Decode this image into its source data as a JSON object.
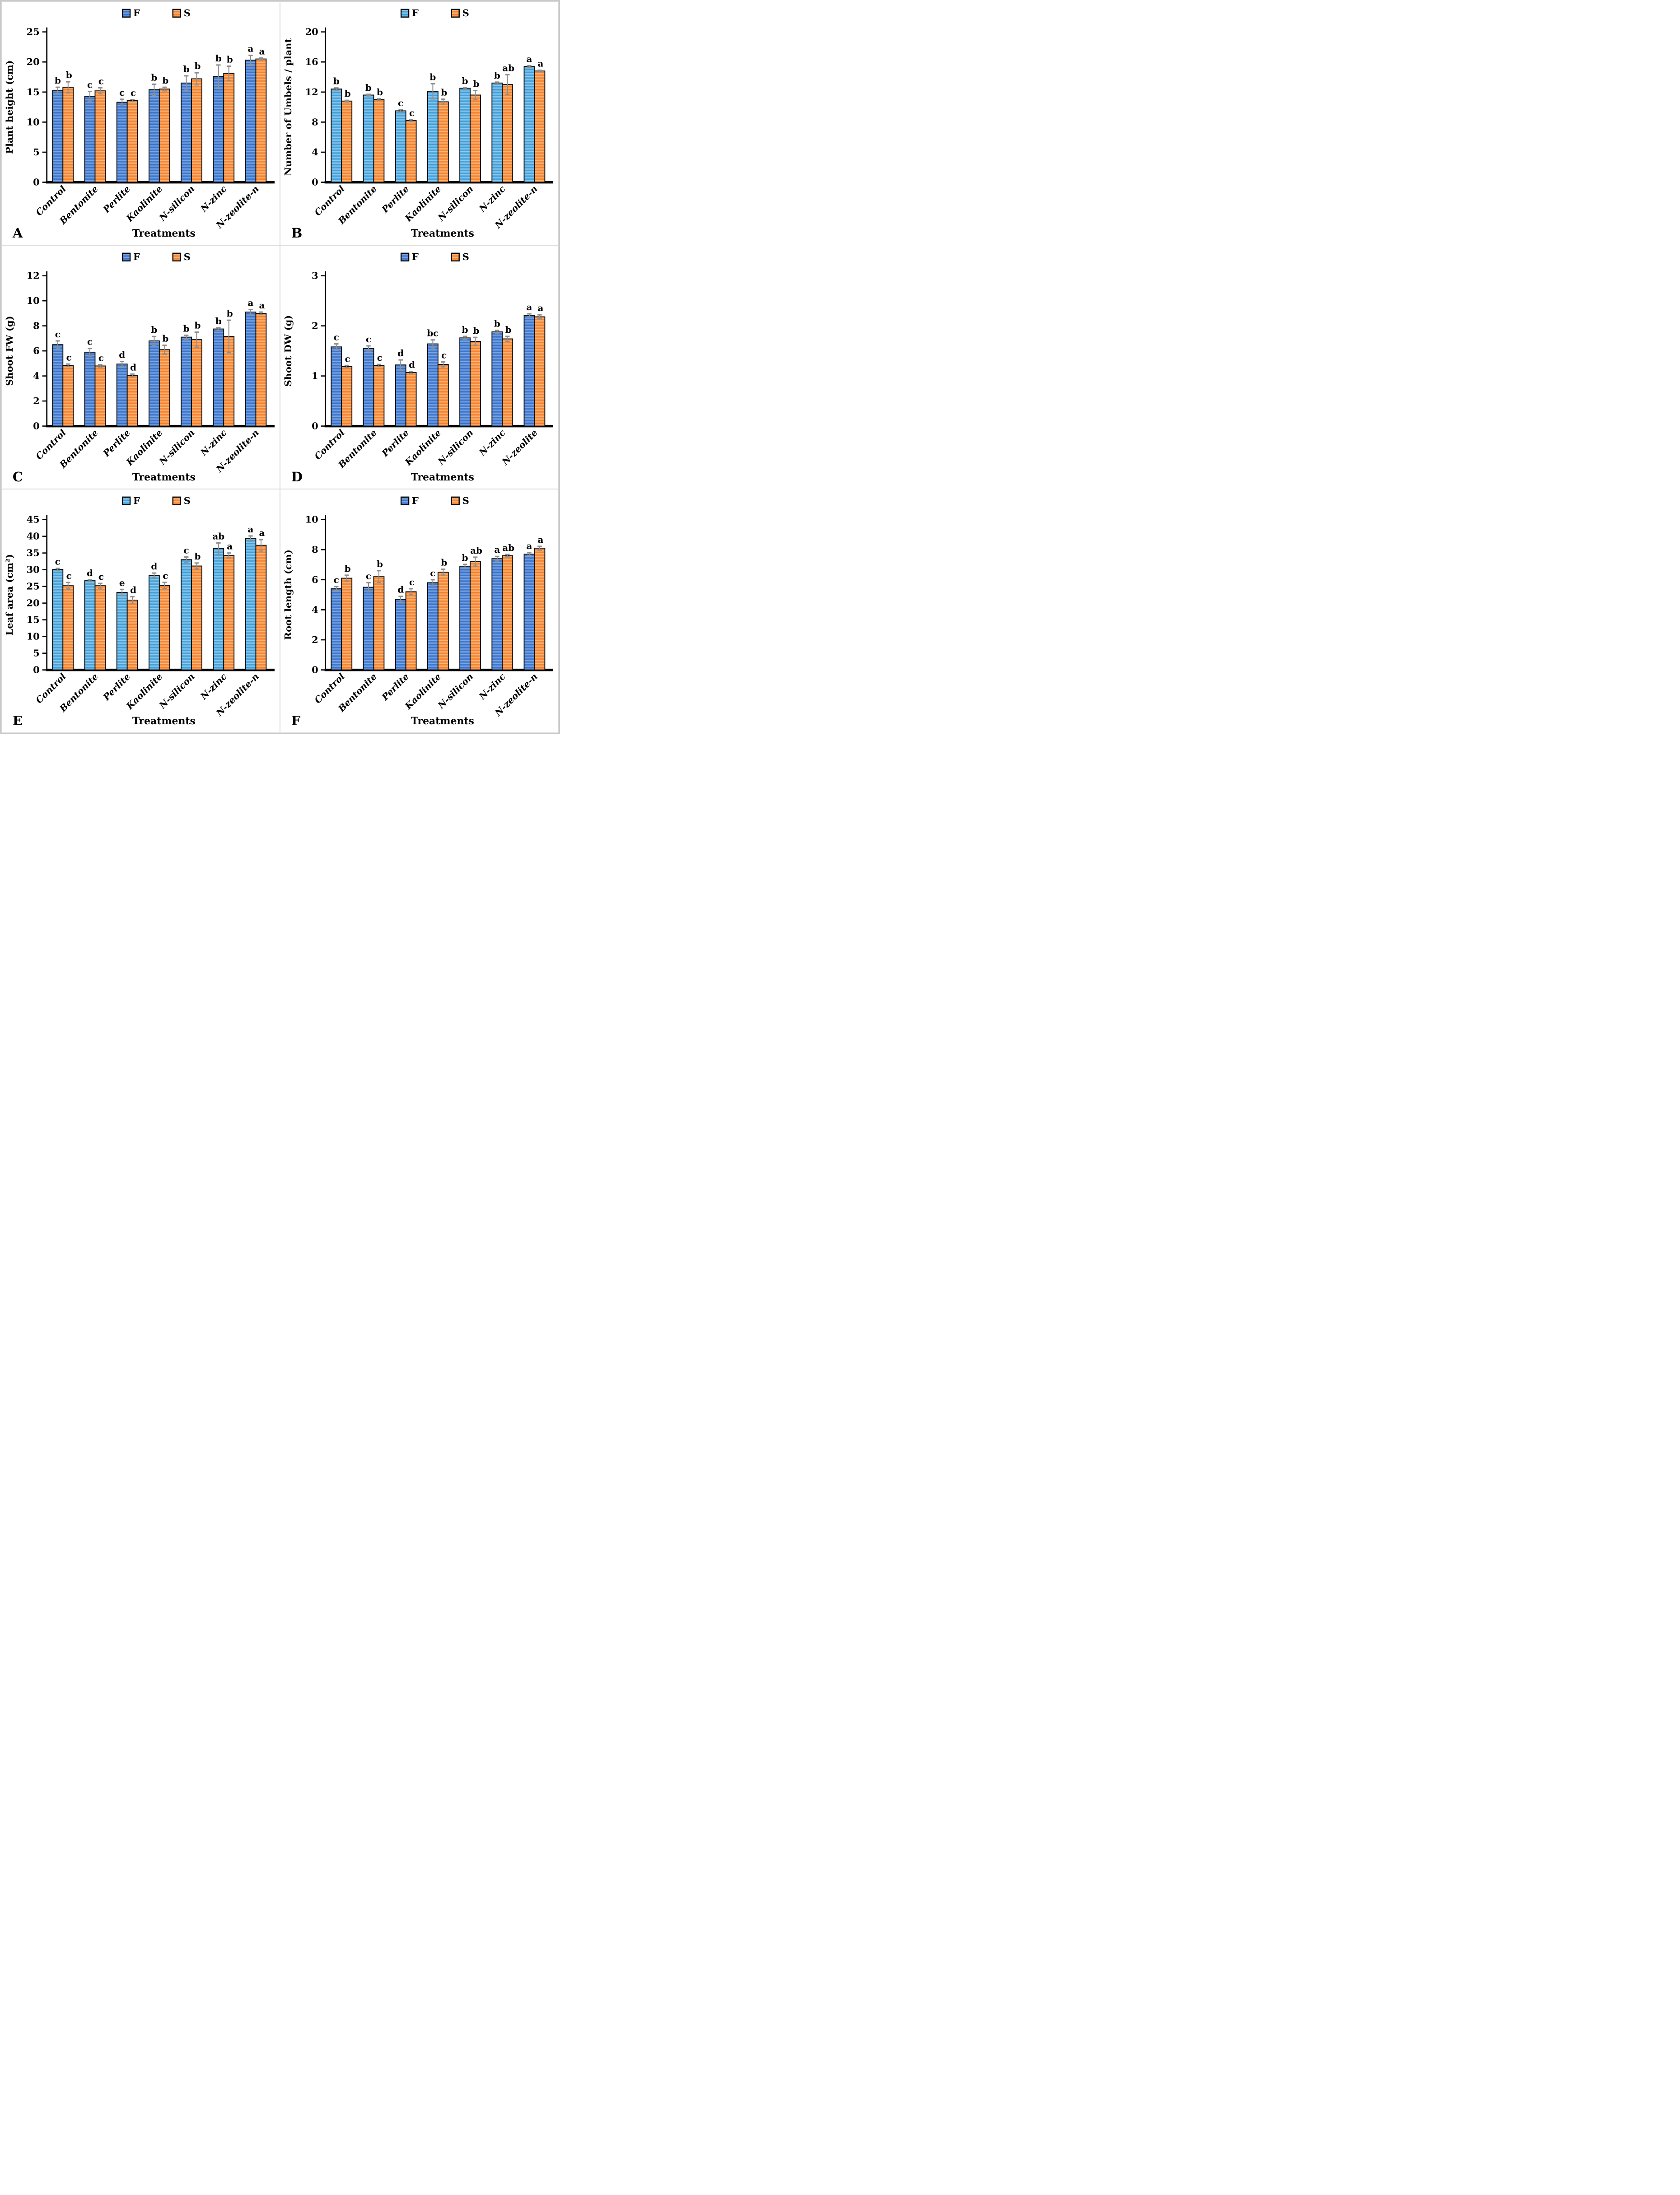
{
  "figure": {
    "xlabel": "Treatments",
    "legend_labels": [
      "F",
      "S"
    ],
    "panel_letters": [
      "A",
      "B",
      "C",
      "D",
      "E",
      "F"
    ],
    "colors": {
      "blue_medium_base": "#3a74cf",
      "blue_medium_stripe": "#86acdf",
      "blue_light_base": "#41a0da",
      "blue_light_stripe": "#9bcfee",
      "orange_base": "#f5822d",
      "orange_stripe": "#fcbc85",
      "bar_border": "#0d0d0d",
      "error_bar": "#8f8f8f",
      "axis": "#000000",
      "panel_border": "#d9d9d9"
    }
  },
  "chart_data": [
    {
      "type": "bar",
      "panel": "A",
      "title": "",
      "xlabel": "Treatments",
      "ylabel": "Plant height (cm)",
      "ylim": [
        0,
        25
      ],
      "yticks": [
        0,
        5,
        10,
        15,
        20,
        25
      ],
      "grid": false,
      "legend_position": "top-center",
      "blue_shade": "medium",
      "categories": [
        "Control",
        "Bentonite",
        "Perlite",
        "Kaolinite",
        "N-silicon",
        "N-zinc",
        "N-zeolite-n"
      ],
      "series": [
        {
          "name": "F",
          "values": [
            15.3,
            14.3,
            13.3,
            15.4,
            16.5,
            17.6,
            20.3
          ],
          "errors": [
            0.5,
            0.8,
            0.5,
            0.9,
            1.2,
            1.9,
            0.8
          ],
          "sig_letters": [
            "b",
            "c",
            "c",
            "b",
            "b",
            "b",
            "a"
          ]
        },
        {
          "name": "S",
          "values": [
            15.8,
            15.2,
            13.6,
            15.5,
            17.2,
            18.1,
            20.5
          ],
          "errors": [
            0.9,
            0.5,
            0.15,
            0.3,
            1.0,
            1.2,
            0.15
          ],
          "sig_letters": [
            "b",
            "c",
            "c",
            "b",
            "b",
            "b",
            "a"
          ]
        }
      ]
    },
    {
      "type": "bar",
      "panel": "B",
      "title": "",
      "xlabel": "Treatments",
      "ylabel": "Number of Umbels / plant",
      "ylim": [
        0,
        20
      ],
      "yticks": [
        0,
        4,
        8,
        12,
        16,
        20
      ],
      "grid": false,
      "legend_position": "top-center",
      "blue_shade": "light",
      "categories": [
        "Control",
        "Bentonite",
        "Perlite",
        "Kaolinite",
        "N-silicon",
        "N-zinc",
        "N-zeolite-n"
      ],
      "series": [
        {
          "name": "F",
          "values": [
            12.4,
            11.6,
            9.5,
            12.1,
            12.5,
            13.2,
            15.4
          ],
          "errors": [
            0.15,
            0.1,
            0.15,
            1.0,
            0.1,
            0.12,
            0.1
          ],
          "sig_letters": [
            "b",
            "b",
            "c",
            "b",
            "b",
            "b",
            "a"
          ]
        },
        {
          "name": "S",
          "values": [
            10.8,
            11.0,
            8.2,
            10.7,
            11.6,
            13.0,
            14.8
          ],
          "errors": [
            0.1,
            0.1,
            0.12,
            0.35,
            0.6,
            1.3,
            0.1
          ],
          "sig_letters": [
            "b",
            "b",
            "c",
            "b",
            "b",
            "ab",
            "a"
          ]
        }
      ]
    },
    {
      "type": "bar",
      "panel": "C",
      "title": "",
      "xlabel": "Treatments",
      "ylabel": "Shoot FW (g)",
      "ylim": [
        0,
        12
      ],
      "yticks": [
        0,
        2,
        4,
        6,
        8,
        10,
        12
      ],
      "grid": false,
      "legend_position": "top-center",
      "blue_shade": "medium",
      "categories": [
        "Control",
        "Bentonite",
        "Perlite",
        "Kaolinite",
        "N-silicon",
        "N-zinc",
        "N-zeolite-n"
      ],
      "series": [
        {
          "name": "F",
          "values": [
            6.5,
            5.9,
            4.95,
            6.8,
            7.1,
            7.75,
            9.1
          ],
          "errors": [
            0.3,
            0.3,
            0.2,
            0.35,
            0.15,
            0.1,
            0.2
          ],
          "sig_letters": [
            "c",
            "c",
            "d",
            "b",
            "b",
            "b",
            "a"
          ]
        },
        {
          "name": "S",
          "values": [
            4.85,
            4.8,
            4.05,
            6.1,
            6.9,
            7.15,
            9.0
          ],
          "errors": [
            0.1,
            0.1,
            0.1,
            0.35,
            0.6,
            1.3,
            0.1
          ],
          "sig_letters": [
            "c",
            "c",
            "d",
            "b",
            "b",
            "b",
            "a"
          ]
        }
      ]
    },
    {
      "type": "bar",
      "panel": "D",
      "title": "",
      "xlabel": "Treatments",
      "ylabel": "Shoot DW (g)",
      "ylim": [
        0,
        3
      ],
      "yticks": [
        0,
        1,
        2,
        3
      ],
      "grid": false,
      "legend_position": "top-center",
      "blue_shade": "medium",
      "categories": [
        "Control",
        "Bentonite",
        "Perlite",
        "Kaolinite",
        "N-silicon",
        "N-zinc",
        "N-zeolite"
      ],
      "series": [
        {
          "name": "F",
          "values": [
            1.58,
            1.55,
            1.22,
            1.64,
            1.76,
            1.88,
            2.21
          ],
          "errors": [
            0.06,
            0.05,
            0.1,
            0.08,
            0.03,
            0.03,
            0.03
          ],
          "sig_letters": [
            "c",
            "c",
            "d",
            "bc",
            "b",
            "b",
            "a"
          ]
        },
        {
          "name": "S",
          "values": [
            1.19,
            1.21,
            1.07,
            1.23,
            1.69,
            1.74,
            2.18
          ],
          "errors": [
            0.02,
            0.02,
            0.02,
            0.05,
            0.08,
            0.05,
            0.04
          ],
          "sig_letters": [
            "c",
            "c",
            "d",
            "c",
            "b",
            "b",
            "a"
          ]
        }
      ]
    },
    {
      "type": "bar",
      "panel": "E",
      "title": "",
      "xlabel": "Treatments",
      "ylabel": "Leaf area (cm²)",
      "ylim": [
        0,
        45
      ],
      "yticks": [
        0,
        5,
        10,
        15,
        20,
        25,
        30,
        35,
        40,
        45
      ],
      "grid": false,
      "legend_position": "top-center",
      "blue_shade": "light",
      "categories": [
        "Control",
        "Bentonite",
        "Perlite",
        "Kaolinite",
        "N-silicon",
        "N-zinc",
        "N-zeolite-n"
      ],
      "series": [
        {
          "name": "F",
          "values": [
            30.1,
            26.7,
            23.2,
            28.3,
            33.0,
            36.3,
            39.4
          ],
          "errors": [
            0.3,
            0.25,
            0.9,
            0.7,
            0.8,
            1.7,
            0.7
          ],
          "sig_letters": [
            "c",
            "d",
            "e",
            "d",
            "c",
            "ab",
            "a"
          ]
        },
        {
          "name": "S",
          "values": [
            25.2,
            25.2,
            20.9,
            25.3,
            31.1,
            34.3,
            37.3
          ],
          "errors": [
            1.0,
            0.7,
            1.0,
            0.9,
            0.9,
            0.7,
            1.7
          ],
          "sig_letters": [
            "c",
            "c",
            "d",
            "c",
            "b",
            "a",
            "a"
          ]
        }
      ]
    },
    {
      "type": "bar",
      "panel": "F",
      "title": "",
      "xlabel": "Treatments",
      "ylabel": "Root length (cm)",
      "ylim": [
        0,
        10
      ],
      "yticks": [
        0,
        2,
        4,
        6,
        8,
        10
      ],
      "grid": false,
      "legend_position": "top-center",
      "blue_shade": "medium",
      "categories": [
        "Control",
        "Bentonite",
        "Perlite",
        "Kaolinite",
        "N-silicon",
        "N-zinc",
        "N-zeolite-n"
      ],
      "series": [
        {
          "name": "F",
          "values": [
            5.4,
            5.5,
            4.7,
            5.8,
            6.9,
            7.4,
            7.7
          ],
          "errors": [
            0.15,
            0.3,
            0.2,
            0.2,
            0.12,
            0.15,
            0.1
          ],
          "sig_letters": [
            "c",
            "c",
            "d",
            "c",
            "b",
            "a",
            "a"
          ]
        },
        {
          "name": "S",
          "values": [
            6.1,
            6.2,
            5.2,
            6.5,
            7.2,
            7.6,
            8.1
          ],
          "errors": [
            0.2,
            0.4,
            0.2,
            0.2,
            0.3,
            0.08,
            0.12
          ],
          "sig_letters": [
            "b",
            "b",
            "c",
            "b",
            "ab",
            "ab",
            "a"
          ]
        }
      ]
    }
  ]
}
